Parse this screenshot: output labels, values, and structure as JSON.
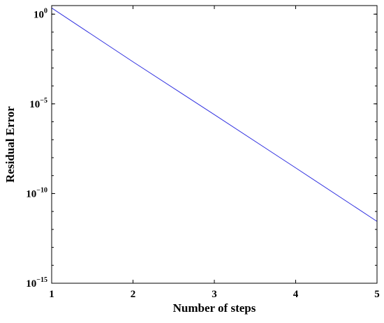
{
  "chart_data": {
    "type": "line",
    "title": "",
    "xlabel": "Number of steps",
    "ylabel": "Residual Error",
    "xlim": [
      1,
      5
    ],
    "ylim": [
      1e-15,
      3
    ],
    "yscale": "log",
    "grid": false,
    "x_ticks": [
      1,
      2,
      3,
      4,
      5
    ],
    "y_ticks": [
      {
        "base": "10",
        "exp": "0",
        "value": 1
      },
      {
        "base": "10",
        "exp": "−5",
        "value": 1e-05
      },
      {
        "base": "10",
        "exp": "−10",
        "value": 1e-10
      },
      {
        "base": "10",
        "exp": "−15",
        "value": 1e-15
      }
    ],
    "series": [
      {
        "color": "#3030e0",
        "x": [
          1,
          2,
          3,
          4,
          5
        ],
        "y": [
          2.2,
          0.0022,
          2.5e-06,
          2.7e-09,
          2.8e-12
        ]
      }
    ]
  }
}
